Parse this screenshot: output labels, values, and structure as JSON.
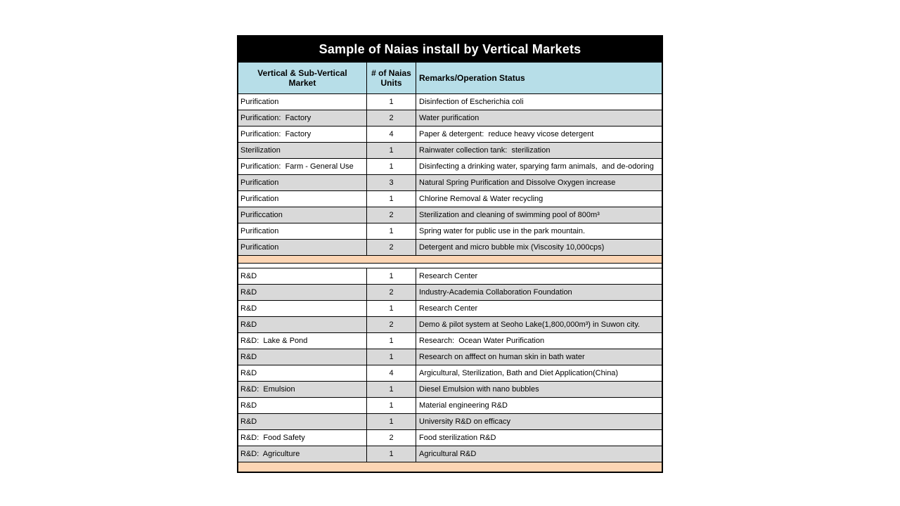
{
  "title": "Sample of Naias install by Vertical Markets",
  "table": {
    "headers": [
      "Vertical & Sub-Vertical Market",
      "# of Naias Units",
      "Remarks/Operation Status"
    ],
    "sections": [
      {
        "name": "purification-sterilization",
        "rows": [
          [
            "Purification",
            "1",
            "Disinfection of Escherichia coli"
          ],
          [
            "Purification:  Factory",
            "2",
            "Water purification"
          ],
          [
            "Purification:  Factory",
            "4",
            "Paper & detergent:  reduce heavy vicose detergent"
          ],
          [
            "Sterilization",
            "1",
            "Rainwater collection tank:  sterilization"
          ],
          [
            "Purification:  Farm - General Use",
            "1",
            "Disinfecting a drinking water, sparying farm animals,  and de-odoring"
          ],
          [
            "Purification",
            "3",
            "Natural Spring Purification and Dissolve Oxygen increase"
          ],
          [
            "Purification",
            "1",
            "Chlorine Removal & Water recycling"
          ],
          [
            "Purificcation",
            "2",
            "Sterilization and cleaning of swimming pool of 800m³"
          ],
          [
            "Purification",
            "1",
            "Spring water for public use in the park mountain."
          ],
          [
            "Purification",
            "2",
            "Detergent and micro bubble mix (Viscosity 10,000cps)"
          ]
        ]
      },
      {
        "name": "research-and-development",
        "rows": [
          [
            "R&D",
            "1",
            "Research Center"
          ],
          [
            "R&D",
            "2",
            "Industry-Academia Collaboration Foundation"
          ],
          [
            "R&D",
            "1",
            "Research Center"
          ],
          [
            "R&D",
            "2",
            "Demo & pilot system at Seoho Lake(1,800,000m³) in Suwon city."
          ],
          [
            "R&D:  Lake & Pond",
            "1",
            "Research:  Ocean Water Purification"
          ],
          [
            "R&D",
            "1",
            "Research on afffect on human skin in bath water"
          ],
          [
            "R&D",
            "4",
            "Argicultural, Sterilization, Bath and Diet Application(China)"
          ],
          [
            "R&D:  Emulsion",
            "1",
            "Diesel Emulsion with nano bubbles"
          ],
          [
            "R&D",
            "1",
            "Material engineering R&D"
          ],
          [
            "R&D",
            "1",
            "University R&D on efficacy"
          ],
          [
            "R&D:  Food Safety",
            "2",
            "Food sterilization R&D"
          ],
          [
            "R&D:  Agriculture",
            "1",
            "Agricultural R&D"
          ]
        ]
      }
    ]
  },
  "colors": {
    "title_bg": "#000000",
    "title_text": "#ffffff",
    "header_bg": "#b7dee8",
    "row_bg": "#ffffff",
    "row_alt_bg": "#d9d9d9",
    "separator_bg": "#fcd5b4",
    "border": "#000000",
    "body_text": "#000000"
  }
}
